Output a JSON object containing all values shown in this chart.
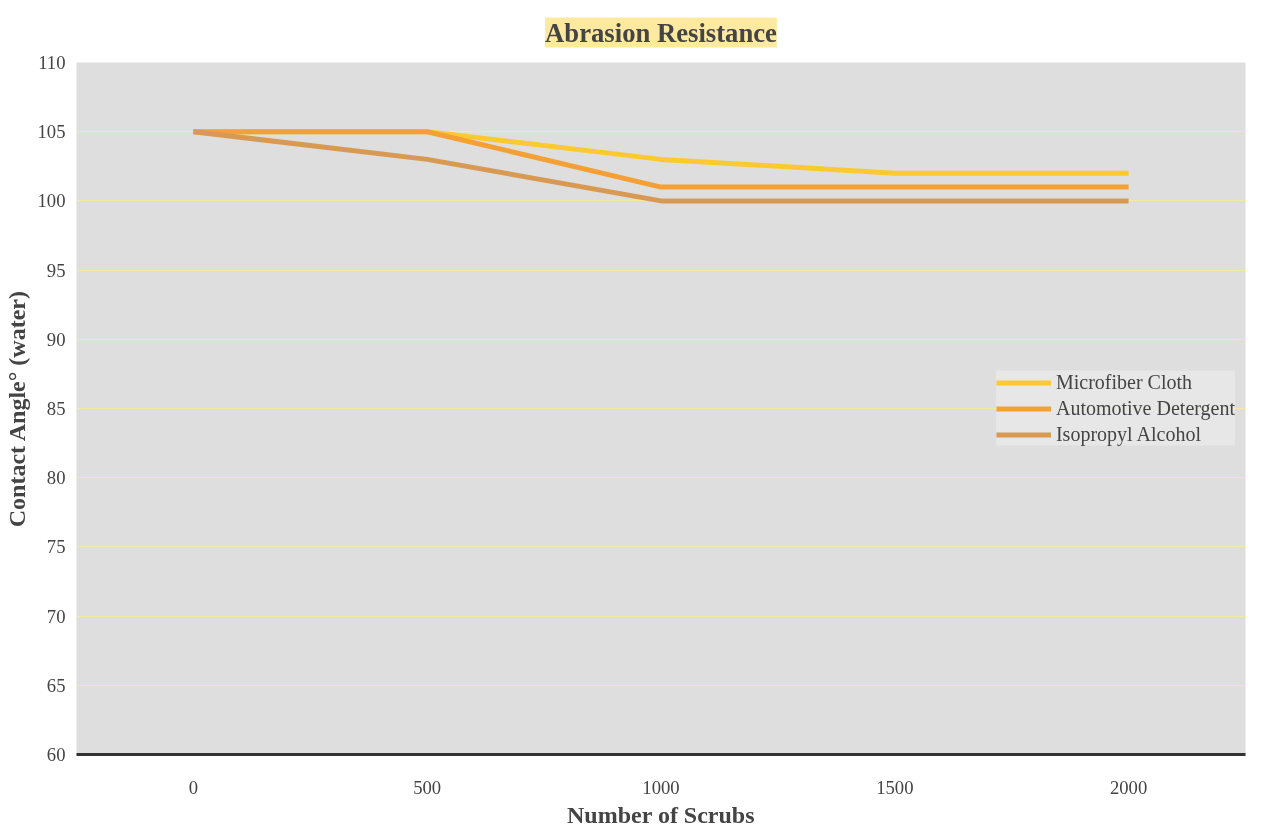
{
  "chart_data": {
    "type": "line",
    "title": "Abrasion Resistance",
    "xlabel": "Number of Scrubs",
    "ylabel": "Contact Angle° (water)",
    "categories": [
      "0",
      "500",
      "1000",
      "1500",
      "2000"
    ],
    "series": [
      {
        "name": "Microfiber Cloth",
        "color": "#fcc92e",
        "values": [
          105,
          105,
          103,
          102,
          102
        ]
      },
      {
        "name": "Automotive Detergent",
        "color": "#f5a035",
        "values": [
          105,
          105,
          101,
          101,
          101
        ]
      },
      {
        "name": "Isopropyl Alcohol",
        "color": "#d89a52",
        "values": [
          105,
          103,
          100,
          100,
          100
        ]
      }
    ],
    "ylim": [
      60,
      110
    ],
    "yticks": [
      60,
      65,
      70,
      75,
      80,
      85,
      90,
      95,
      100,
      105,
      110
    ],
    "grid": "y",
    "legend": "right",
    "line_style": "solid",
    "marker": "none"
  }
}
